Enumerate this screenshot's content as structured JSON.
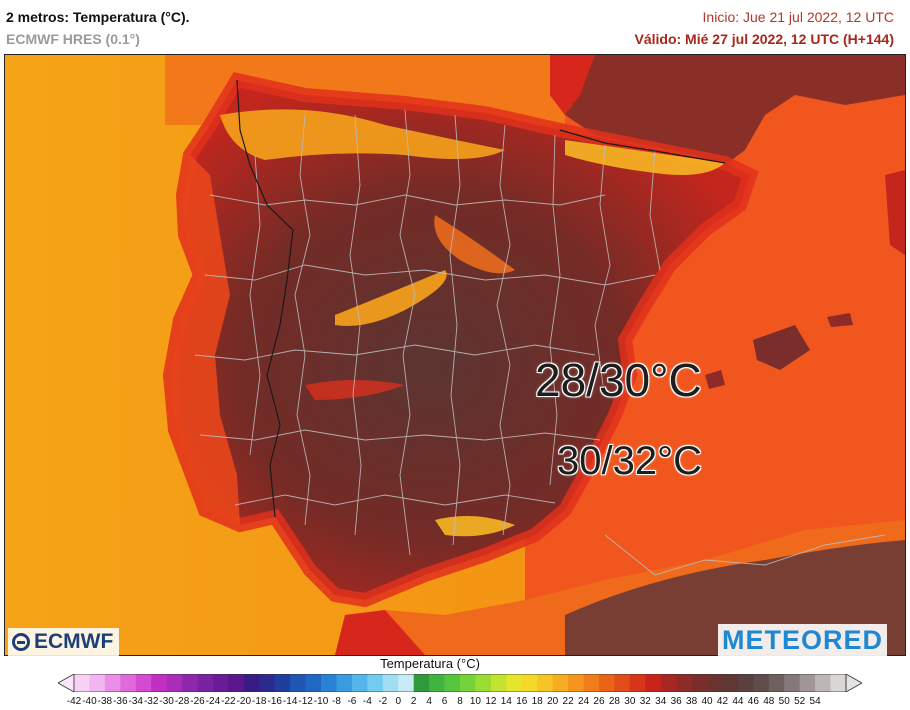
{
  "header": {
    "title": "2 metros: Temperatura (°C).",
    "model": "ECMWF HRES (0.1°)",
    "run_time": "Inicio: Jue 21 jul 2022, 12 UTC",
    "valid_time": "Válido: Mié 27 jul 2022, 12 UTC (H+144)"
  },
  "map": {
    "annotations": [
      {
        "id": "east",
        "text": "28/30°C"
      },
      {
        "id": "inland",
        "text": "30/32°C"
      }
    ],
    "colors": {
      "sea_atlantic": "#f39c12",
      "sea_mediterranean": "#f0531e",
      "land_hot": "#d7261b",
      "land_very_hot": "#7a2a24",
      "land_extreme": "#5a3a38",
      "mountains": "#f7a41c",
      "borders": "#b9b9b9"
    }
  },
  "logos": {
    "left": "ECMWF",
    "right": "METEORED"
  },
  "legend": {
    "title": "Temperatura (°C)",
    "ticks": [
      -42,
      -40,
      -38,
      -36,
      -34,
      -32,
      -30,
      -28,
      -26,
      -24,
      -22,
      -20,
      -18,
      -16,
      -14,
      -12,
      -10,
      -8,
      -6,
      -4,
      -2,
      0,
      2,
      4,
      6,
      8,
      10,
      12,
      14,
      16,
      18,
      20,
      22,
      24,
      26,
      28,
      30,
      32,
      34,
      36,
      38,
      40,
      42,
      44,
      46,
      48,
      50,
      52,
      54
    ],
    "colors": [
      "#f6d3f5",
      "#f2b5f0",
      "#ec8de8",
      "#e06adb",
      "#d44ad0",
      "#c12fc4",
      "#a92cba",
      "#8f27ad",
      "#7a22a2",
      "#6a1c96",
      "#5b178b",
      "#3a1b86",
      "#2b2a8e",
      "#1f3e9e",
      "#1f55b3",
      "#2068c4",
      "#2a82d4",
      "#3a9be0",
      "#55b4ea",
      "#74cbf0",
      "#a0def4",
      "#c8ecf6",
      "#2f9a3c",
      "#3fb441",
      "#56c53c",
      "#75d23a",
      "#9bdc34",
      "#c2e330",
      "#e5e52c",
      "#f4d92a",
      "#f7c427",
      "#f7ad22",
      "#f5951d",
      "#f17d1a",
      "#ea6418",
      "#e24c18",
      "#d83419",
      "#c8241b",
      "#a92722",
      "#8e2a27",
      "#7a2d2a",
      "#6b332f",
      "#5f3835",
      "#5a403e",
      "#5f4c4b",
      "#6e605f",
      "#857878",
      "#a09696",
      "#bdb6b6",
      "#dad6d6"
    ]
  }
}
